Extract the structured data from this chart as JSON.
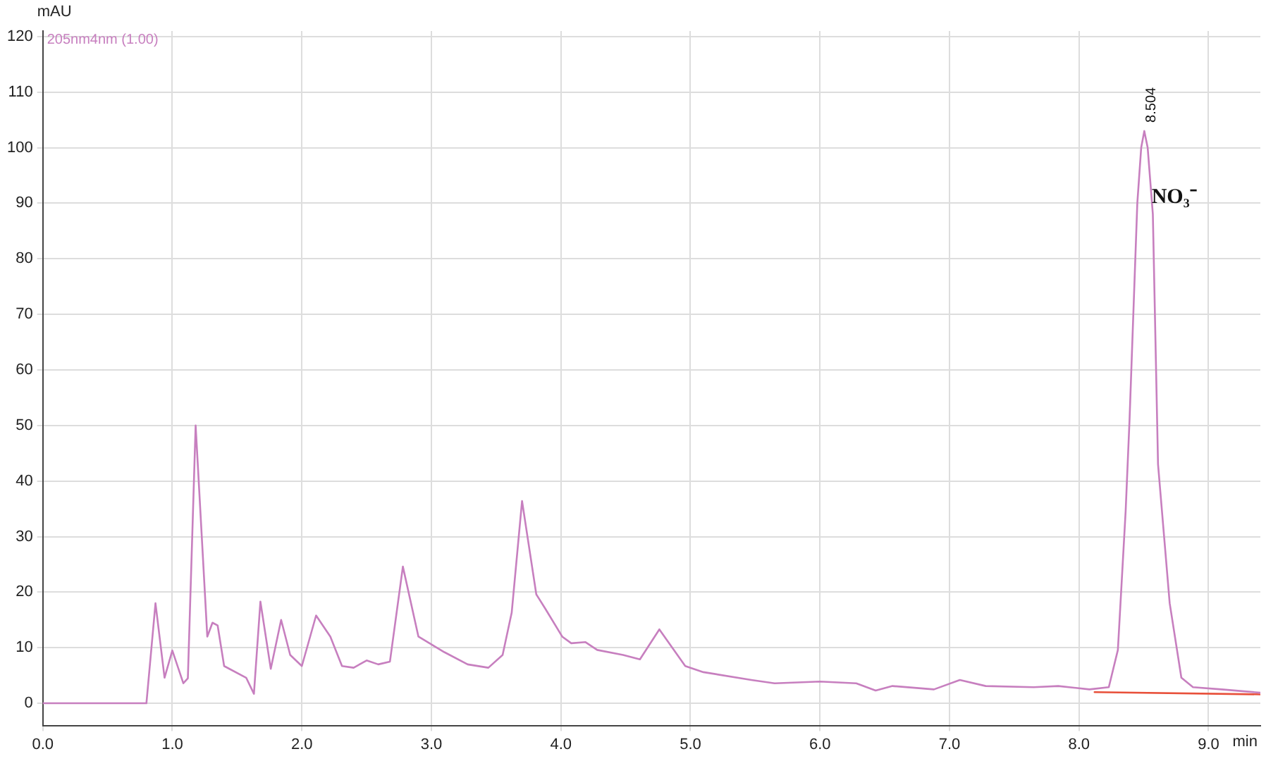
{
  "chart_data": {
    "type": "line",
    "xlabel": "min",
    "ylabel": "mAU",
    "xlim": [
      0,
      9.4
    ],
    "ylim": [
      -4,
      121
    ],
    "xticks": [
      {
        "value": 0,
        "label": "0.0"
      },
      {
        "value": 1,
        "label": "1.0"
      },
      {
        "value": 2,
        "label": "2.0"
      },
      {
        "value": 3,
        "label": "3.0"
      },
      {
        "value": 4,
        "label": "4.0"
      },
      {
        "value": 5,
        "label": "5.0"
      },
      {
        "value": 6,
        "label": "6.0"
      },
      {
        "value": 7,
        "label": "7.0"
      },
      {
        "value": 8,
        "label": "8.0"
      },
      {
        "value": 9,
        "label": "9.0"
      }
    ],
    "yticks": [
      0,
      10,
      20,
      30,
      40,
      50,
      60,
      70,
      80,
      90,
      100,
      110,
      120
    ],
    "grid": true,
    "legend": "top left",
    "marker": "none",
    "line_style": "solid",
    "series": [
      {
        "name": "205nm4nm (1.00)",
        "color": "#c77fbf",
        "x": [
          0,
          0.8,
          0.87,
          0.94,
          1.0,
          1.085,
          1.12,
          1.18,
          1.27,
          1.31,
          1.35,
          1.4,
          1.57,
          1.63,
          1.68,
          1.76,
          1.84,
          1.91,
          2.0,
          2.11,
          2.22,
          2.31,
          2.4,
          2.5,
          2.59,
          2.68,
          2.78,
          2.9,
          3.1,
          3.28,
          3.44,
          3.55,
          3.62,
          3.7,
          3.81,
          3.88,
          4.01,
          4.08,
          4.19,
          4.28,
          4.48,
          4.61,
          4.76,
          4.96,
          5.1,
          5.47,
          5.65,
          6.0,
          6.28,
          6.43,
          6.56,
          6.88,
          7.08,
          7.28,
          7.65,
          7.84,
          8.08,
          8.23,
          8.3,
          8.36,
          8.39,
          8.45,
          8.48,
          8.504,
          8.53,
          8.57,
          8.61,
          8.7,
          8.79,
          8.88,
          9.1,
          9.4
        ],
        "values": [
          0,
          0,
          18,
          4.6,
          9.5,
          3.6,
          4.5,
          50,
          12,
          14.5,
          14,
          6.7,
          4.6,
          1.7,
          18.3,
          6.2,
          15,
          8.7,
          6.7,
          15.8,
          12,
          6.7,
          6.4,
          7.7,
          7,
          7.5,
          24.6,
          12,
          9.2,
          7,
          6.4,
          8.7,
          16.3,
          36.4,
          19.6,
          17,
          12,
          10.8,
          11,
          9.6,
          8.7,
          7.9,
          13.3,
          6.7,
          5.6,
          4.2,
          3.6,
          3.9,
          3.6,
          2.3,
          3.1,
          2.5,
          4.2,
          3.1,
          2.9,
          3.1,
          2.5,
          2.9,
          9.6,
          34.6,
          51,
          90,
          100,
          103,
          100,
          88,
          43,
          18,
          4.6,
          2.9,
          2.5,
          1.9
        ]
      },
      {
        "color": "#e8503a",
        "x": [
          8.12,
          9.4
        ],
        "values": [
          2.0,
          1.6
        ]
      }
    ],
    "annotations": [
      {
        "text": "8.504",
        "x": 8.504,
        "y": 103
      },
      {
        "text": "NO₃⁻",
        "x": 8.56,
        "y": 91
      }
    ]
  }
}
